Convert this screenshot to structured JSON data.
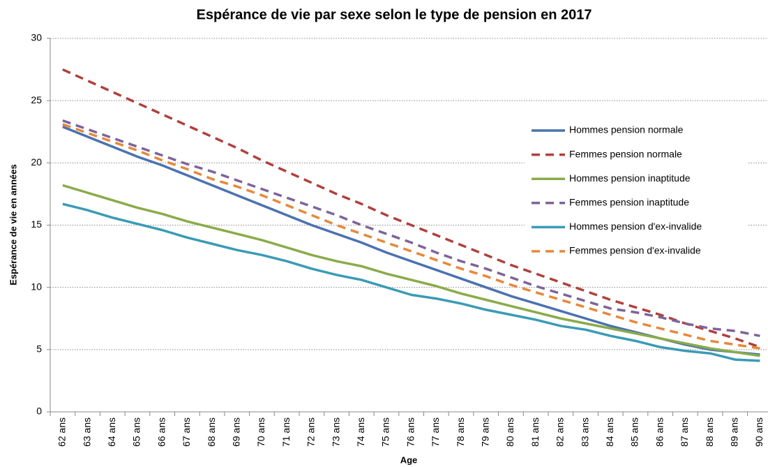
{
  "chart_data": {
    "type": "line",
    "title": "Espérance de vie par sexe selon le type de pension en 2017",
    "x_label": "Age",
    "y_label": "Espérance de vie en années",
    "categories": [
      "62 ans",
      "63 ans",
      "64 ans",
      "65 ans",
      "66 ans",
      "67 ans",
      "68 ans",
      "69 ans",
      "70 ans",
      "71 ans",
      "72 ans",
      "73 ans",
      "74 ans",
      "75 ans",
      "76 ans",
      "77 ans",
      "78 ans",
      "79 ans",
      "80 ans",
      "81 ans",
      "82 ans",
      "83 ans",
      "84 ans",
      "85 ans",
      "86 ans",
      "87 ans",
      "88 ans",
      "89 ans",
      "90 ans"
    ],
    "ylim": [
      0,
      30
    ],
    "yticks": [
      0,
      5,
      10,
      15,
      20,
      25,
      30
    ],
    "grid": true,
    "series": [
      {
        "name": "Hommes pension normale",
        "color": "#4a72b0",
        "dashed": false,
        "values": [
          22.9,
          22.1,
          21.3,
          20.5,
          19.8,
          19.0,
          18.2,
          17.4,
          16.6,
          15.8,
          15.0,
          14.3,
          13.6,
          12.8,
          12.1,
          11.4,
          10.7,
          10.0,
          9.3,
          8.7,
          8.1,
          7.5,
          6.9,
          6.4,
          5.9,
          5.4,
          5.0,
          4.8,
          4.6
        ]
      },
      {
        "name": "Femmes pension normale",
        "color": "#b0403d",
        "dashed": true,
        "values": [
          27.5,
          26.6,
          25.7,
          24.8,
          23.9,
          23.0,
          22.1,
          21.2,
          20.2,
          19.3,
          18.4,
          17.5,
          16.7,
          15.8,
          15.0,
          14.2,
          13.4,
          12.6,
          11.8,
          11.1,
          10.4,
          9.7,
          9.0,
          8.4,
          7.8,
          7.1,
          6.5,
          5.9,
          5.2
        ]
      },
      {
        "name": "Hommes pension inaptitude",
        "color": "#8aab4a",
        "dashed": false,
        "values": [
          18.2,
          17.6,
          17.0,
          16.4,
          15.9,
          15.3,
          14.8,
          14.3,
          13.8,
          13.2,
          12.6,
          12.1,
          11.7,
          11.1,
          10.6,
          10.1,
          9.5,
          9.0,
          8.5,
          8.0,
          7.5,
          7.1,
          6.7,
          6.3,
          5.9,
          5.5,
          5.1,
          4.8,
          4.5
        ]
      },
      {
        "name": "Femmes pension inaptitude",
        "color": "#7e6399",
        "dashed": true,
        "values": [
          23.4,
          22.7,
          22.0,
          21.3,
          20.6,
          19.9,
          19.3,
          18.6,
          17.9,
          17.2,
          16.5,
          15.8,
          15.0,
          14.3,
          13.6,
          12.8,
          12.1,
          11.5,
          10.8,
          10.1,
          9.5,
          8.9,
          8.3,
          8.0,
          7.6,
          7.1,
          6.7,
          6.5,
          6.1
        ]
      },
      {
        "name": "Hommes pension d'ex-invalide",
        "color": "#3a9bb5",
        "dashed": false,
        "values": [
          16.7,
          16.2,
          15.6,
          15.1,
          14.6,
          14.0,
          13.5,
          13.0,
          12.6,
          12.1,
          11.5,
          11.0,
          10.6,
          10.0,
          9.4,
          9.1,
          8.7,
          8.2,
          7.8,
          7.4,
          6.9,
          6.6,
          6.1,
          5.7,
          5.2,
          4.9,
          4.7,
          4.2,
          4.1
        ]
      },
      {
        "name": "Femmes pension d'ex-invalide",
        "color": "#e8873a",
        "dashed": true,
        "values": [
          23.1,
          22.4,
          21.7,
          21.0,
          20.2,
          19.5,
          18.7,
          18.1,
          17.4,
          16.6,
          15.8,
          15.0,
          14.3,
          13.6,
          12.9,
          12.2,
          11.5,
          10.9,
          10.2,
          9.6,
          9.0,
          8.4,
          7.8,
          7.2,
          6.7,
          6.2,
          5.7,
          5.4,
          5.1
        ]
      }
    ]
  }
}
